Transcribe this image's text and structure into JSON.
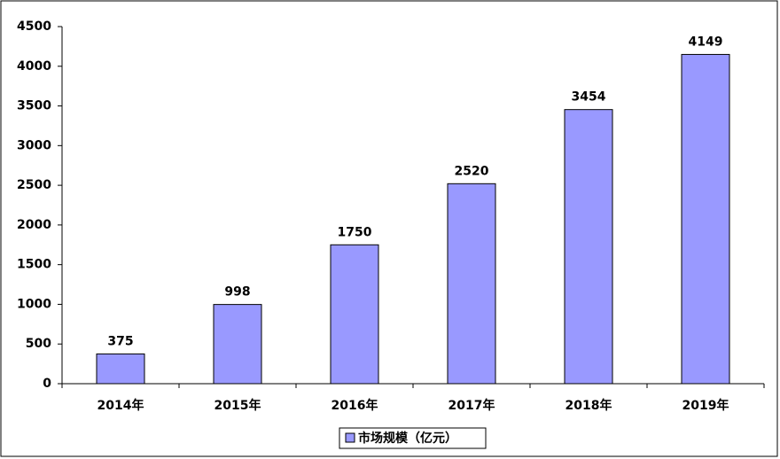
{
  "chart_data": {
    "type": "bar",
    "categories": [
      "2014年",
      "2015年",
      "2016年",
      "2017年",
      "2018年",
      "2019年"
    ],
    "series": [
      {
        "name": "市场规模（亿元）",
        "color": "#9999ff",
        "values": [
          375,
          998,
          1750,
          2520,
          3454,
          4149
        ]
      }
    ],
    "ylim": [
      0,
      4500
    ],
    "yticks": [
      0,
      500,
      1000,
      1500,
      2000,
      2500,
      3000,
      3500,
      4000,
      4500
    ],
    "grid": false,
    "legend": "bottom"
  }
}
